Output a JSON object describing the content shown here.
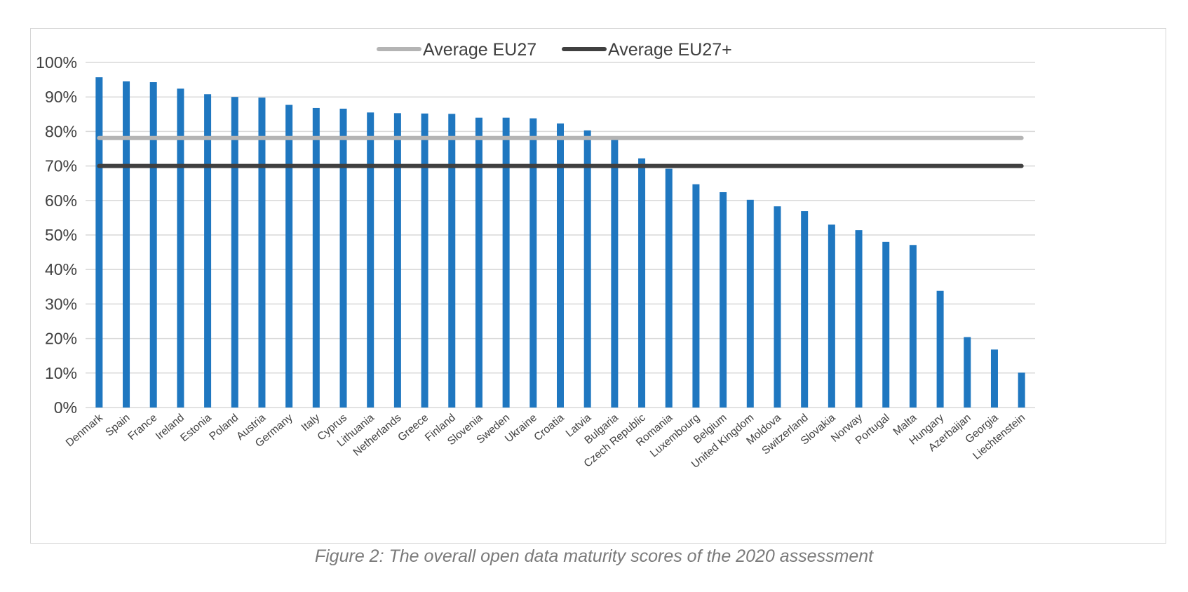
{
  "header": {
    "title": ""
  },
  "caption": "Figure 2: The overall open data maturity scores of the 2020 assessment",
  "colors": {
    "bar": "#1f77c0",
    "eu27": "#b4b4b4",
    "eu27plus": "#404040",
    "grid": "#d9d9d9"
  },
  "chart_data": {
    "type": "bar",
    "title": "",
    "xlabel": "",
    "ylabel": "",
    "ylim": [
      0,
      100
    ],
    "yticks": [
      "0%",
      "10%",
      "20%",
      "30%",
      "40%",
      "50%",
      "60%",
      "70%",
      "80%",
      "90%",
      "100%"
    ],
    "grid": true,
    "legend": "top-center",
    "categories": [
      "Denmark",
      "Spain",
      "France",
      "Ireland",
      "Estonia",
      "Poland",
      "Austria",
      "Germany",
      "Italy",
      "Cyprus",
      "Lithuania",
      "Netherlands",
      "Greece",
      "Finland",
      "Slovenia",
      "Sweden",
      "Ukraine",
      "Croatia",
      "Latvia",
      "Bulgaria",
      "Czech Republic",
      "Romania",
      "Luxembourg",
      "Belgium",
      "United Kingdom",
      "Moldova",
      "Switzerland",
      "Slovakia",
      "Norway",
      "Portugal",
      "Malta",
      "Hungary",
      "Azerbaijan",
      "Georgia",
      "Liechtenstein"
    ],
    "values": [
      95.7,
      94.5,
      94.3,
      92.4,
      90.8,
      90.0,
      89.8,
      87.7,
      86.8,
      86.6,
      85.5,
      85.3,
      85.2,
      85.1,
      84.0,
      84.0,
      83.8,
      82.3,
      80.3,
      78.3,
      72.2,
      69.2,
      64.7,
      62.4,
      60.2,
      58.3,
      56.9,
      53.0,
      51.4,
      48.0,
      47.1,
      33.8,
      20.4,
      16.8,
      10.1
    ],
    "series": [
      {
        "name": "Average EU27",
        "type": "line",
        "value": 78.1
      },
      {
        "name": "Average EU27+",
        "type": "line",
        "value": 70.0
      }
    ]
  }
}
